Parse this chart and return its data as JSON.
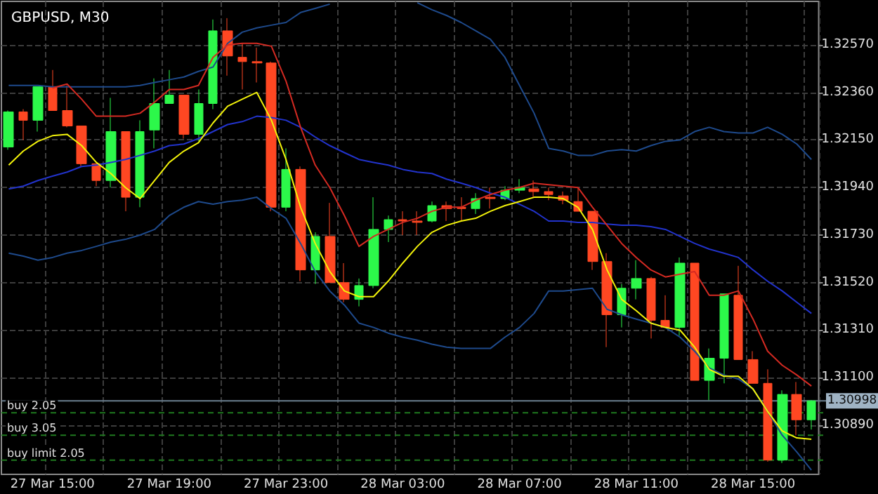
{
  "chart_data": {
    "type": "candlestick",
    "title": "GBPUSD, M30",
    "categories": [
      null,
      null,
      null,
      "27 Mar 15:00",
      null,
      null,
      null,
      null,
      null,
      null,
      null,
      "27 Mar 19:00",
      null,
      null,
      null,
      null,
      null,
      null,
      null,
      "27 Mar 23:00",
      null,
      null,
      null,
      null,
      null,
      null,
      null,
      "28 Mar 03:00",
      null,
      null,
      null,
      null,
      null,
      null,
      null,
      "28 Mar 07:00",
      null,
      null,
      null,
      null,
      null,
      null,
      null,
      "28 Mar 11:00",
      null,
      null,
      null,
      null,
      null,
      null,
      null,
      "28 Mar 15:00",
      null,
      null,
      null,
      null
    ],
    "ohlc": [
      [
        1.32119,
        1.3228,
        1.32107,
        1.32274
      ],
      [
        1.32274,
        1.32286,
        1.3215,
        1.32237
      ],
      [
        1.32237,
        1.32385,
        1.32187,
        1.32385
      ],
      [
        1.32385,
        1.32459,
        1.3228,
        1.3228
      ],
      [
        1.3228,
        1.32391,
        1.32206,
        1.32212
      ],
      [
        1.32212,
        1.32212,
        1.32033,
        1.32045
      ],
      [
        1.32045,
        1.32045,
        1.31946,
        1.31971
      ],
      [
        1.31971,
        1.32336,
        1.3194,
        1.32187
      ],
      [
        1.32187,
        1.32187,
        1.31835,
        1.31897
      ],
      [
        1.31897,
        1.32237,
        1.31853,
        1.32187
      ],
      [
        1.32194,
        1.32422,
        1.32113,
        1.32311
      ],
      [
        1.32311,
        1.32459,
        1.32311,
        1.32348
      ],
      [
        1.32348,
        1.32348,
        1.32156,
        1.32175
      ],
      [
        1.32175,
        1.32373,
        1.32144,
        1.32311
      ],
      [
        1.32311,
        1.32682,
        1.32286,
        1.32632
      ],
      [
        1.32632,
        1.32688,
        1.32434,
        1.32521
      ],
      [
        1.32515,
        1.32577,
        1.32373,
        1.32496
      ],
      [
        1.32496,
        1.32558,
        1.32404,
        1.3249
      ],
      [
        1.3249,
        1.32496,
        1.31835,
        1.31853
      ],
      [
        1.31853,
        1.32113,
        1.31835,
        1.3202
      ],
      [
        1.3202,
        1.32033,
        1.31526,
        1.31576
      ],
      [
        1.31576,
        1.31742,
        1.31514,
        1.31724
      ],
      [
        1.31724,
        1.31872,
        1.3152,
        1.3152
      ],
      [
        1.3152,
        1.31606,
        1.31433,
        1.31446
      ],
      [
        1.31446,
        1.31538,
        1.31415,
        1.31507
      ],
      [
        1.31507,
        1.31897,
        1.31495,
        1.31755
      ],
      [
        1.31755,
        1.31816,
        1.31699,
        1.31798
      ],
      [
        1.31798,
        1.31835,
        1.3173,
        1.31792
      ],
      [
        1.31792,
        1.31835,
        1.3173,
        1.31786
      ],
      [
        1.31792,
        1.31878,
        1.31786,
        1.3186
      ],
      [
        1.3186,
        1.31878,
        1.31792,
        1.31847
      ],
      [
        1.31853,
        1.31897,
        1.31792,
        1.31847
      ],
      [
        1.31847,
        1.31915,
        1.31823,
        1.31891
      ],
      [
        1.31897,
        1.3194,
        1.31847,
        1.31891
      ],
      [
        1.31891,
        1.31946,
        1.31884,
        1.31928
      ],
      [
        1.31928,
        1.31977,
        1.31915,
        1.3194
      ],
      [
        1.31934,
        1.31971,
        1.31897,
        1.31922
      ],
      [
        1.31922,
        1.3194,
        1.31884,
        1.31909
      ],
      [
        1.31903,
        1.31922,
        1.31866,
        1.31884
      ],
      [
        1.31878,
        1.3194,
        1.31835,
        1.31835
      ],
      [
        1.31835,
        1.31835,
        1.31576,
        1.31613
      ],
      [
        1.31613,
        1.3165,
        1.31235,
        1.31378
      ],
      [
        1.31378,
        1.31514,
        1.31322,
        1.31495
      ],
      [
        1.31495,
        1.31619,
        1.31446,
        1.31538
      ],
      [
        1.31538,
        1.31545,
        1.31273,
        1.31353
      ],
      [
        1.31353,
        1.31464,
        1.31322,
        1.31322
      ],
      [
        1.31322,
        1.31631,
        1.31285,
        1.31606
      ],
      [
        1.31606,
        1.31606,
        1.31088,
        1.31088
      ],
      [
        1.31088,
        1.31229,
        1.31001,
        1.31186
      ],
      [
        1.31186,
        1.3147,
        1.31075,
        1.3147
      ],
      [
        1.31464,
        1.31594,
        1.3118,
        1.3118
      ],
      [
        1.3118,
        1.31217,
        1.31075,
        1.31075
      ],
      [
        1.31075,
        1.31137,
        1.30729,
        1.30736
      ],
      [
        1.30736,
        1.31044,
        1.30723,
        1.31026
      ],
      [
        1.31026,
        1.31081,
        1.30846,
        1.30914
      ],
      [
        1.30914,
        1.31001,
        1.30871,
        1.30998
      ]
    ],
    "colors": [
      "#2cf84a",
      "#ff4722",
      "#2cf84a",
      "#ff4722",
      "#ff4722",
      "#ff4722",
      "#ff4722",
      "#2cf84a",
      "#ff4722",
      "#2cf84a",
      "#2cf84a",
      "#2cf84a",
      "#ff4722",
      "#2cf84a",
      "#2cf84a",
      "#ff4722",
      "#ff4722",
      "#ff4722",
      "#ff4722",
      "#2cf84a",
      "#ff4722",
      "#2cf84a",
      "#ff4722",
      "#ff4722",
      "#2cf84a",
      "#2cf84a",
      "#2cf84a",
      "#ff4722",
      "#ff4722",
      "#2cf84a",
      "#ff4722",
      "#ff4722",
      "#2cf84a",
      "#ff4722",
      "#2cf84a",
      "#2cf84a",
      "#ff4722",
      "#ff4722",
      "#ff4722",
      "#ff4722",
      "#ff4722",
      "#ff4722",
      "#2cf84a",
      "#2cf84a",
      "#ff4722",
      "#ff4722",
      "#2cf84a",
      "#ff4722",
      "#2cf84a",
      "#2cf84a",
      "#ff4722",
      "#ff4722",
      "#ff4722",
      "#2cf84a",
      "#ff4722",
      "#2cf84a"
    ],
    "series": [
      {
        "type": "line",
        "color": "#1e4a8c",
        "values": [
          1.32391,
          1.32391,
          1.32391,
          1.32385,
          1.32385,
          1.32385,
          1.32385,
          1.32385,
          1.32385,
          1.32391,
          1.32404,
          1.32416,
          1.32428,
          1.32453,
          1.32472,
          1.32577,
          1.32626,
          1.32645,
          1.32657,
          1.32669,
          1.32713,
          1.32731,
          1.3275,
          null,
          null,
          null,
          null,
          null,
          1.32756,
          1.32725,
          1.327,
          1.32669,
          1.32632,
          1.32595,
          1.32515,
          1.32391,
          1.32268,
          1.32113,
          1.32101,
          1.32082,
          1.32082,
          1.32101,
          1.32107,
          1.32101,
          1.32125,
          1.32144,
          1.3215,
          1.32187,
          1.32206,
          1.32187,
          1.32181,
          1.32181,
          1.32206,
          1.32175,
          1.32132,
          1.32064
        ]
      },
      {
        "type": "line",
        "color": "#1e4a8c",
        "values": [
          1.3165,
          1.31637,
          1.31619,
          1.31631,
          1.3165,
          1.31662,
          1.3168,
          1.31699,
          1.31711,
          1.3173,
          1.31755,
          1.31816,
          1.31853,
          1.31878,
          1.31866,
          1.31878,
          1.31884,
          1.31897,
          1.31847,
          1.31804,
          1.31693,
          1.31569,
          1.31483,
          1.31421,
          1.31341,
          1.31322,
          1.31297,
          1.31279,
          1.31266,
          1.31248,
          1.31235,
          1.31229,
          1.31229,
          1.31229,
          1.31279,
          1.31322,
          1.31384,
          1.31483,
          1.31483,
          1.31489,
          1.31495,
          1.31402,
          1.31378,
          1.31359,
          1.31341,
          1.31322,
          1.31279,
          1.31217,
          1.31143,
          1.31112,
          1.31094,
          1.3105,
          1.30951,
          1.30846,
          1.30772,
          1.30692
        ]
      },
      {
        "type": "line",
        "color": "#2233cc",
        "values": [
          1.31934,
          1.31946,
          1.31971,
          1.3199,
          1.32008,
          1.32033,
          1.32039,
          1.32051,
          1.32064,
          1.32082,
          1.32101,
          1.32125,
          1.32132,
          1.32156,
          1.32187,
          1.32218,
          1.32231,
          1.32255,
          1.32249,
          1.32237,
          1.32206,
          1.32163,
          1.32125,
          1.32094,
          1.32064,
          1.32051,
          1.32039,
          1.3202,
          1.32008,
          1.32002,
          1.31977,
          1.31959,
          1.3194,
          1.31915,
          1.31897,
          1.31866,
          1.31835,
          1.31792,
          1.31792,
          1.31786,
          1.31786,
          1.31779,
          1.31773,
          1.31773,
          1.31767,
          1.31755,
          1.31724,
          1.31693,
          1.31668,
          1.3165,
          1.31631,
          1.31576,
          1.31526,
          1.31483,
          1.31433,
          1.31384
        ]
      },
      {
        "type": "line",
        "color": "#d42a22",
        "values": [
          null,
          null,
          null,
          1.32379,
          1.32397,
          1.3233,
          1.32255,
          1.32255,
          1.32255,
          1.32268,
          1.32317,
          1.32373,
          1.32373,
          1.32391,
          1.32515,
          1.3257,
          1.32577,
          1.32577,
          1.32564,
          1.3241,
          1.32206,
          1.32039,
          1.3194,
          1.31816,
          1.3168,
          1.31724,
          1.31755,
          1.31786,
          1.31804,
          1.31835,
          1.31853,
          1.31853,
          1.31884,
          1.31909,
          1.31928,
          1.3194,
          1.31959,
          1.31952,
          1.31946,
          1.3194,
          1.31853,
          1.31773,
          1.31693,
          1.31631,
          1.31576,
          1.31545,
          1.31557,
          1.31569,
          1.31464,
          1.31464,
          1.31483,
          1.31359,
          1.31217,
          1.31155,
          1.31112,
          1.31063
        ]
      },
      {
        "type": "line",
        "color": "#f2f20a",
        "values": [
          1.32039,
          1.32101,
          1.32144,
          1.32169,
          1.32175,
          1.32125,
          1.32051,
          1.32002,
          1.3194,
          1.31891,
          1.31971,
          1.32051,
          1.32101,
          1.32138,
          1.32225,
          1.32299,
          1.3233,
          1.3236,
          1.32237,
          1.32064,
          1.31853,
          1.31693,
          1.31569,
          1.31483,
          1.31458,
          1.31458,
          1.31526,
          1.31606,
          1.3168,
          1.31742,
          1.31773,
          1.31792,
          1.31804,
          1.31835,
          1.3186,
          1.31878,
          1.31897,
          1.31897,
          1.31891,
          1.31853,
          1.31755,
          1.31576,
          1.31446,
          1.31396,
          1.31341,
          1.31322,
          1.3131,
          1.31235,
          1.31137,
          1.31106,
          1.31106,
          1.3105,
          1.30951,
          1.30865,
          1.30834,
          1.30828
        ]
      }
    ],
    "ylim": [
      1.30673,
      1.32762
    ],
    "yticks": [
      {
        "value": 1.3089,
        "label": "1.30890"
      },
      {
        "value": 1.311,
        "label": "1.31100"
      },
      {
        "value": 1.3131,
        "label": "1.31310"
      },
      {
        "value": 1.3152,
        "label": "1.31520"
      },
      {
        "value": 1.3173,
        "label": "1.31730"
      },
      {
        "value": 1.3194,
        "label": "1.31940"
      },
      {
        "value": 1.3215,
        "label": "1.32150"
      },
      {
        "value": 1.3236,
        "label": "1.32360"
      },
      {
        "value": 1.3257,
        "label": "1.32570"
      }
    ],
    "ref_lines": [
      {
        "axis": "y",
        "value": 1.30998,
        "label": "1.30998",
        "color": "#6b7f90",
        "line_style": "solid"
      },
      {
        "axis": "y",
        "value": 1.30945,
        "label": "buy 2.05",
        "color": "#1f7a1f",
        "line_style": "dashed"
      },
      {
        "axis": "y",
        "value": 1.30846,
        "label": "buy 3.05",
        "color": "#1f7a1f",
        "line_style": "dashed"
      },
      {
        "axis": "y",
        "value": 1.30736,
        "label": "buy limit 2.05",
        "color": "#1f7a1f",
        "line_style": "dashed"
      }
    ],
    "grid": true
  }
}
